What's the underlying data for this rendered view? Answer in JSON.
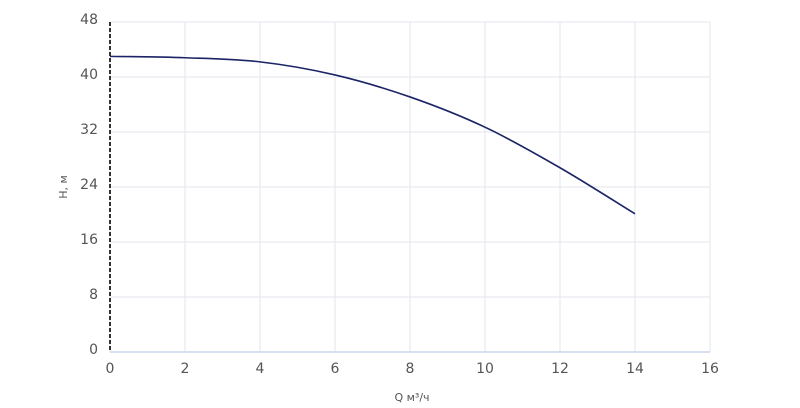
{
  "chart_data": {
    "type": "line",
    "x_label": "Q м³/ч",
    "y_label": "H, м",
    "series": [
      {
        "color": "#1b2466",
        "x": [
          0,
          2,
          4,
          6,
          8,
          10,
          12,
          14
        ],
        "values": [
          43.0,
          42.8,
          42.2,
          40.3,
          37.1,
          32.7,
          26.8,
          20.1
        ]
      }
    ],
    "xlim": [
      0,
      16
    ],
    "xticks": [
      0,
      2,
      4,
      6,
      8,
      10,
      12,
      14,
      16
    ],
    "ylim": [
      0,
      48
    ],
    "yticks": [
      0,
      8,
      16,
      24,
      32,
      40,
      48
    ],
    "grid": true
  }
}
